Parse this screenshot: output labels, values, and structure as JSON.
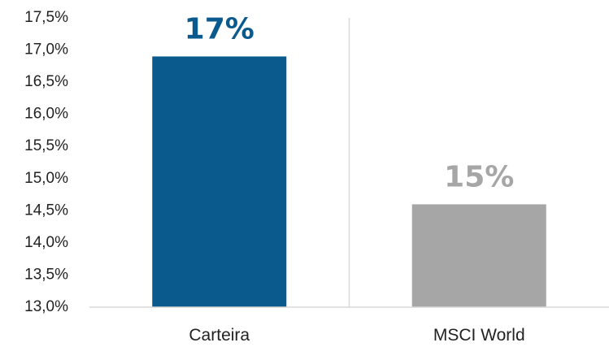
{
  "chart_data": {
    "type": "bar",
    "categories": [
      "Carteira",
      "MSCI World"
    ],
    "values": [
      16.9,
      14.6
    ],
    "data_labels": [
      "17%",
      "15%"
    ],
    "bar_colors": [
      "#0b5a8e",
      "#a6a6a6"
    ],
    "label_colors": [
      "#0b5a8e",
      "#a6a6a6"
    ],
    "ylim": [
      13.0,
      17.5
    ],
    "ytick_labels": [
      "13,0%",
      "13,5%",
      "14,0%",
      "14,5%",
      "15,0%",
      "15,5%",
      "16,0%",
      "16,5%",
      "17,0%",
      "17,5%"
    ],
    "grid": "vertical separator lines only",
    "title": "",
    "xlabel": "",
    "ylabel": ""
  }
}
